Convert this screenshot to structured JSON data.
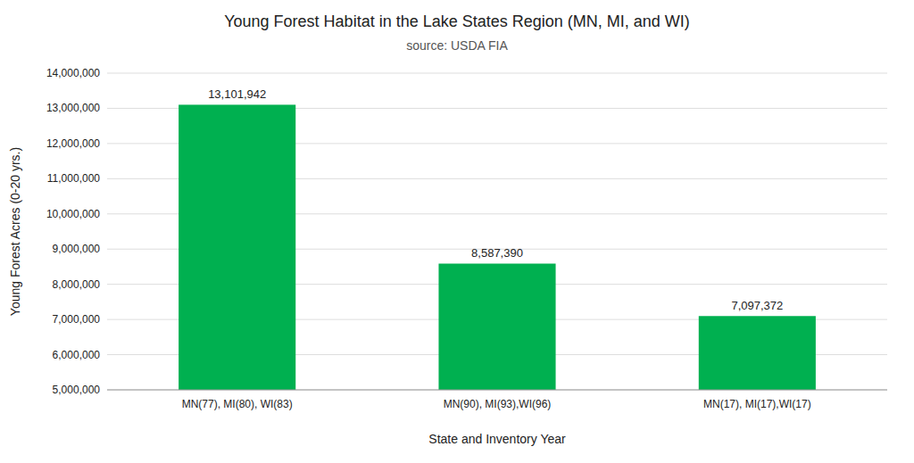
{
  "chart_data": {
    "type": "bar",
    "title": "Young Forest Habitat in the Lake States Region (MN, MI, and WI)",
    "subtitle": "source: USDA FIA",
    "x_label": "State and Inventory Year",
    "y_label": "Young Forest Acres (0-20 yrs.)",
    "categories": [
      "MN(77), MI(80), WI(83)",
      "MN(90), MI(93),WI(96)",
      "MN(17), MI(17),WI(17)"
    ],
    "values": [
      13101942,
      8587390,
      7097372
    ],
    "value_labels": [
      "13,101,942",
      "8,587,390",
      "7,097,372"
    ],
    "data_labels": true,
    "color": "#00b050",
    "ylim": [
      5000000,
      14000000
    ],
    "yticks": [
      {
        "value": 5000000,
        "label": "5,000,000"
      },
      {
        "value": 6000000,
        "label": "6,000,000"
      },
      {
        "value": 7000000,
        "label": "7,000,000"
      },
      {
        "value": 8000000,
        "label": "8,000,000"
      },
      {
        "value": 9000000,
        "label": "9,000,000"
      },
      {
        "value": 10000000,
        "label": "10,000,000"
      },
      {
        "value": 11000000,
        "label": "11,000,000"
      },
      {
        "value": 12000000,
        "label": "12,000,000"
      },
      {
        "value": 13000000,
        "label": "13,000,000"
      },
      {
        "value": 14000000,
        "label": "14,000,000"
      }
    ],
    "grid": true
  }
}
